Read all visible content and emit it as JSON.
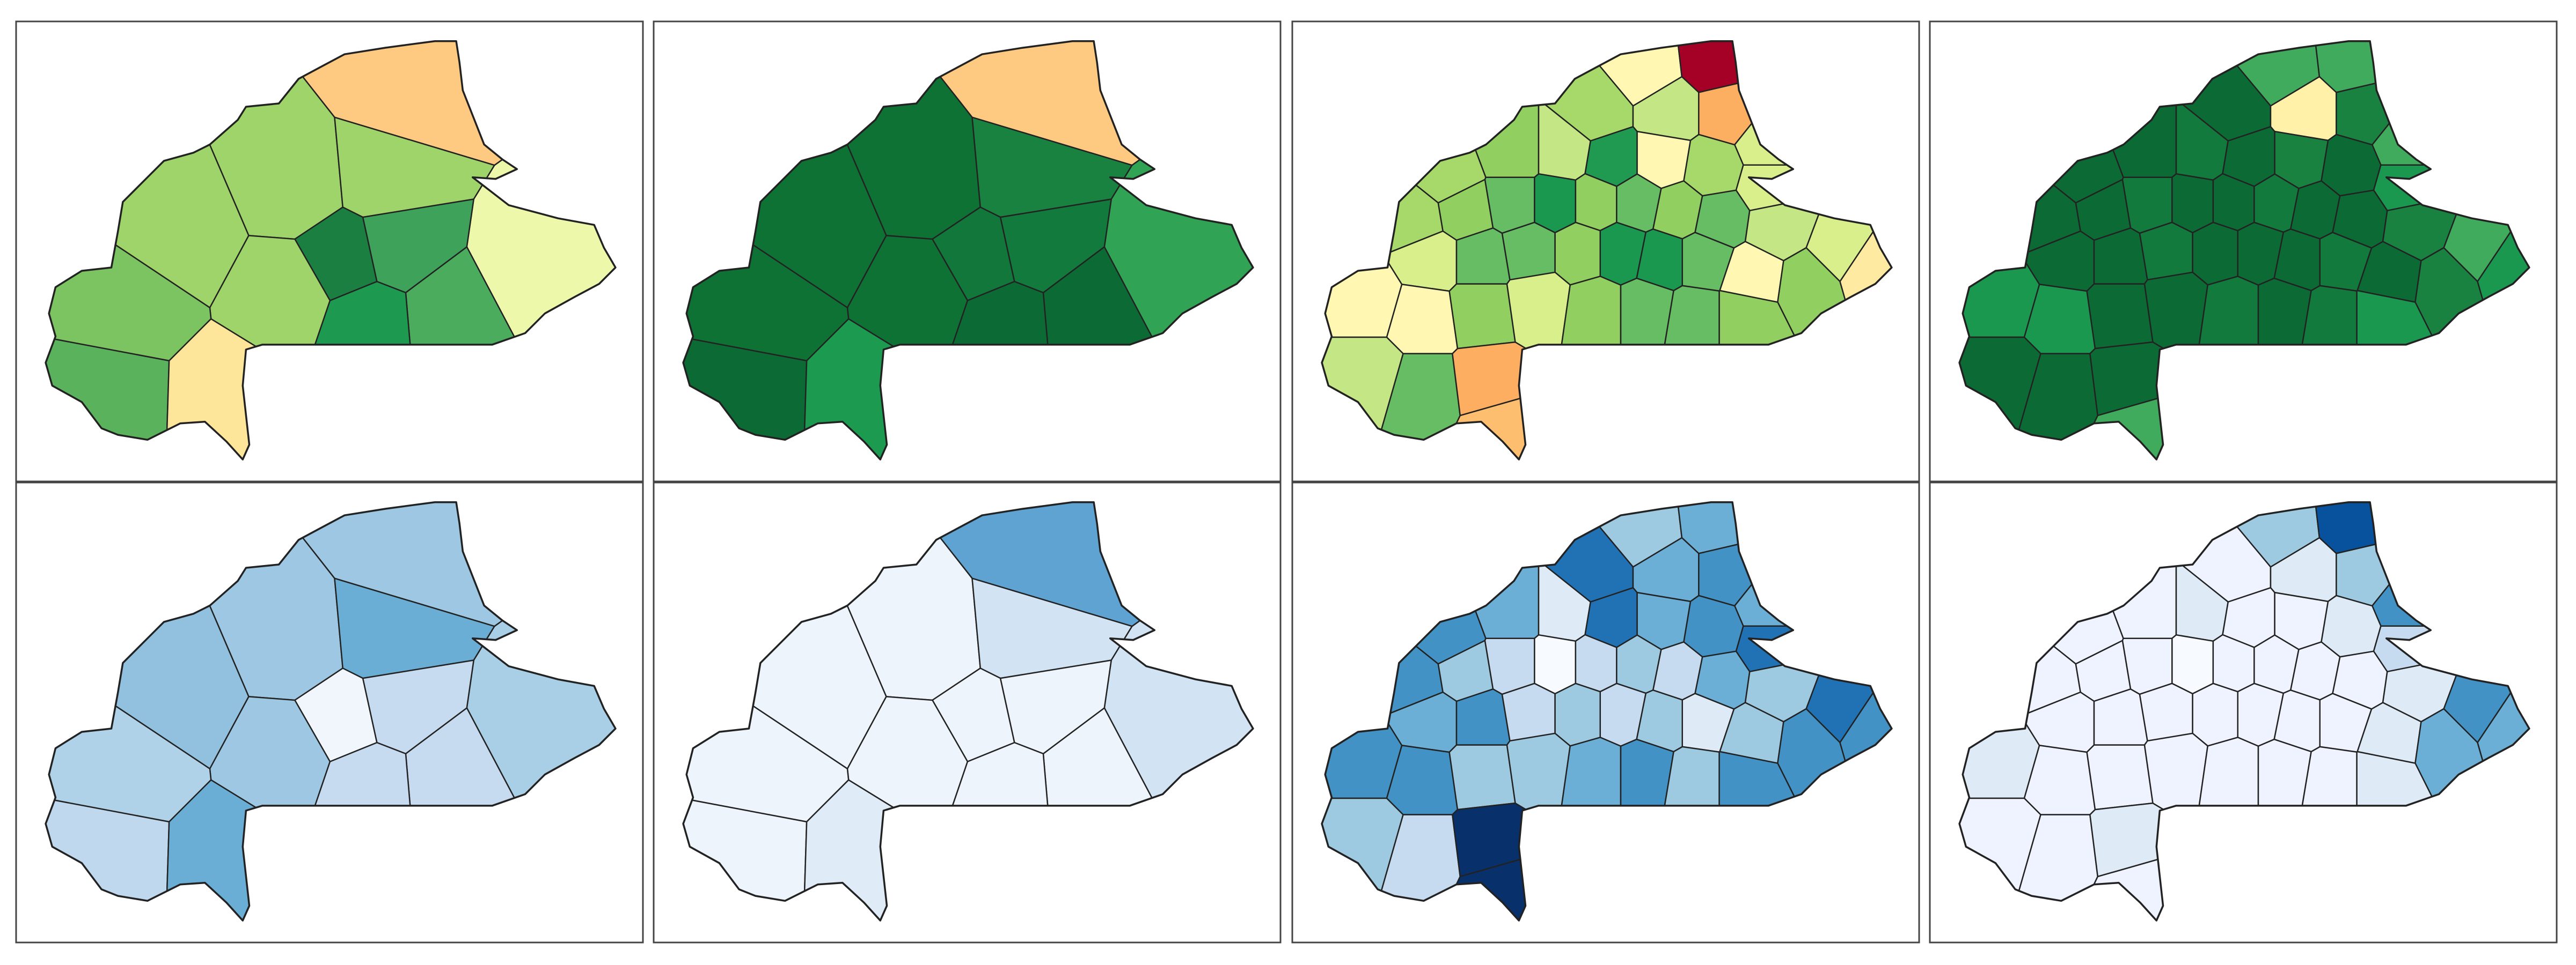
{
  "panels": [
    {
      "regions": [
        "#fec980",
        "#9fd46a",
        "#9fd46a",
        "#9fd46a",
        "#eef8ab",
        "#4aac5c",
        "#1a7f40",
        "#3ea25a",
        "#9fd46a",
        "#1d9a50",
        "#7cc362",
        "#5bb25c",
        "#fde69a"
      ]
    },
    {
      "regions": [
        "#fec980",
        "#0f7235",
        "#0f7235",
        "#1a8240",
        "#31a354",
        "#0c6b34",
        "#11773a",
        "#117a3c",
        "#0f7235",
        "#0c6b34",
        "#0f7235",
        "#0c6b34",
        "#1b9a50"
      ]
    },
    {
      "regions": [
        "#fff7b2",
        "#a50026",
        "#a6d96a",
        "#c4e685",
        "#fcae61",
        "#d9ef8b",
        "#a6d96a",
        "#91cf60",
        "#c4e685",
        "#1f9a50",
        "#fff7b2",
        "#a6d96a",
        "#d9ef8b",
        "#a6d96a",
        "#91cf60",
        "#66bd63",
        "#1a9850",
        "#91cf60",
        "#66bd63",
        "#91cf60",
        "#66bd63",
        "#c4e685",
        "#d9ef8b",
        "#fff7b2",
        "#d9ef8b",
        "#66bd63",
        "#66bd63",
        "#91cf60",
        "#1a9850",
        "#1a9850",
        "#66bd63",
        "#fff7b2",
        "#91cf60",
        "#feeaa0",
        "#fff7b2",
        "#91cf60",
        "#d9ef8b",
        "#91cf60",
        "#66bd63",
        "#66bd63",
        "#91cf60",
        "#c4e685",
        "#66bd63",
        "#fdae61",
        "#fdbf6f"
      ]
    },
    {
      "regions": [
        "#41ab5d",
        "#41ab5d",
        "#0c6b34",
        "#fff2a8",
        "#1a8240",
        "#41ab5d",
        "#0c6b34",
        "#0c6b34",
        "#117a3c",
        "#0c6b34",
        "#1a8240",
        "#0c6b34",
        "#1a9850",
        "#0c6b34",
        "#0c6b34",
        "#117a3c",
        "#0c6b34",
        "#0c6b34",
        "#117a3c",
        "#0c6b34",
        "#0c6b34",
        "#1a8240",
        "#41ab5d",
        "#1a9850",
        "#0c6b34",
        "#0c6b34",
        "#117a3c",
        "#0c6b34",
        "#0c6b34",
        "#0c6b34",
        "#117a3c",
        "#0c6b34",
        "#1a8240",
        "#1a9850",
        "#1a9850",
        "#0c6b34",
        "#0c6b34",
        "#117a3c",
        "#0c6b34",
        "#117a3c",
        "#1a9850",
        "#0c6b34",
        "#0c6b34",
        "#0c6b34",
        "#41ab5d"
      ]
    },
    {
      "regions": [
        "#9dc7e2",
        "#9dc7e2",
        "#92c1df",
        "#6aaed6",
        "#a9cfe6",
        "#c6dbef",
        "#f0f6fc",
        "#c6dbef",
        "#9dc7e2",
        "#c6dbef",
        "#b0d2e8",
        "#c0d8ed",
        "#6aaed6"
      ]
    },
    {
      "regions": [
        "#5ea3d2",
        "#edf4fc",
        "#edf4fc",
        "#d2e3f3",
        "#d2e3f3",
        "#edf4fc",
        "#edf4fc",
        "#edf4fc",
        "#edf4fc",
        "#edf4fc",
        "#edf4fc",
        "#edf4fc",
        "#dfebf7"
      ]
    },
    {
      "regions": [
        "#9ecae1",
        "#6baed6",
        "#2171b5",
        "#6baed6",
        "#4292c6",
        "#6baed6",
        "#4292c6",
        "#6baed6",
        "#deebf7",
        "#2171b5",
        "#6baed6",
        "#4292c6",
        "#2171b5",
        "#4292c6",
        "#9ecae1",
        "#c6dbef",
        "#f7fbff",
        "#c6dbef",
        "#9ecae1",
        "#c6dbef",
        "#6baed6",
        "#9ecae1",
        "#2171b5",
        "#4292c6",
        "#6baed6",
        "#4292c6",
        "#c6dbef",
        "#9ecae1",
        "#c6dbef",
        "#9ecae1",
        "#deebf7",
        "#9ecae1",
        "#4292c6",
        "#4292c6",
        "#4292c6",
        "#9ecae1",
        "#9ecae1",
        "#6baed6",
        "#4292c6",
        "#9ecae1",
        "#4292c6",
        "#9ecae1",
        "#c6dbef",
        "#08306b",
        "#08306b"
      ]
    },
    {
      "regions": [
        "#9ecae1",
        "#08519c",
        "#eff3ff",
        "#deebf7",
        "#9ecae1",
        "#4292c6",
        "#eff3ff",
        "#eff3ff",
        "#deebf7",
        "#eff3ff",
        "#eff3ff",
        "#deebf7",
        "#c6dbef",
        "#eff3ff",
        "#eff3ff",
        "#eff3ff",
        "#f7fbff",
        "#eff3ff",
        "#eff3ff",
        "#eff3ff",
        "#eff3ff",
        "#deebf7",
        "#4292c6",
        "#deebf7",
        "#eff3ff",
        "#eff3ff",
        "#eff3ff",
        "#eff3ff",
        "#eff3ff",
        "#eff3ff",
        "#eff3ff",
        "#deebf7",
        "#6baed6",
        "#6baed6",
        "#eff3ff",
        "#eff3ff",
        "#eff3ff",
        "#eff3ff",
        "#eff3ff",
        "#eff3ff",
        "#deebf7",
        "#eff3ff",
        "#eff3ff",
        "#deebf7",
        "#eff3ff"
      ]
    }
  ]
}
